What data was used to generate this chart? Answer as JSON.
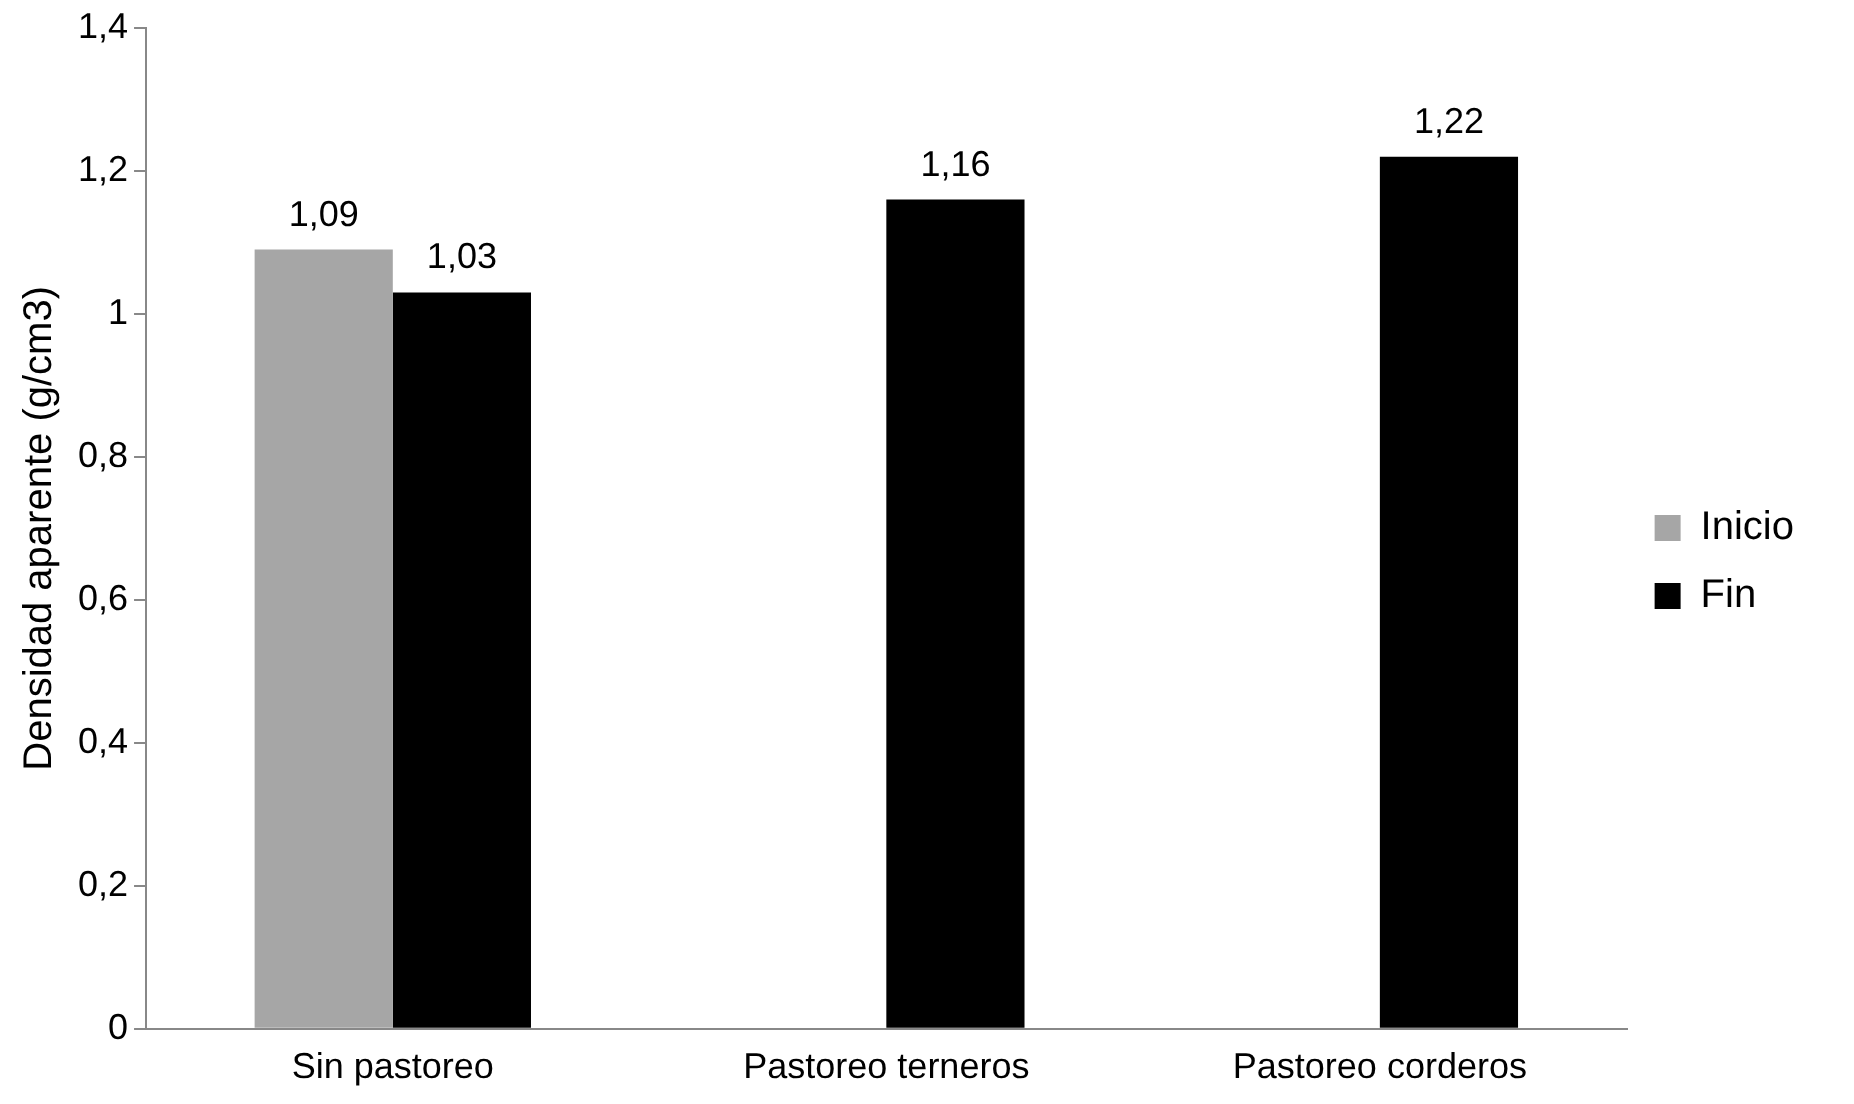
{
  "chart_data": {
    "type": "bar",
    "ylabel": "Densidad aparente (g/cm3)",
    "categories": [
      "Sin pastoreo",
      "Pastoreo terneros",
      "Pastoreo corderos"
    ],
    "series": [
      {
        "name": "Inicio",
        "color": "#a6a6a6",
        "values": [
          1.09,
          null,
          null
        ],
        "value_labels": [
          "1,09",
          null,
          null
        ]
      },
      {
        "name": "Fin",
        "color": "#000000",
        "values": [
          1.03,
          1.16,
          1.22
        ],
        "value_labels": [
          "1,03",
          "1,16",
          "1,22"
        ]
      }
    ],
    "ylim": [
      0,
      1.4
    ],
    "yticks": [
      0,
      {
        "value": 0.2,
        "label": "0,2"
      },
      {
        "value": 0.4,
        "label": "0,4"
      },
      {
        "value": 0.6,
        "label": "0,6"
      },
      {
        "value": 0.8,
        "label": "0,8"
      },
      1,
      {
        "value": 1.2,
        "label": "1,2"
      },
      {
        "value": 1.4,
        "label": "1,4"
      }
    ],
    "grid": false,
    "legend": "right"
  }
}
